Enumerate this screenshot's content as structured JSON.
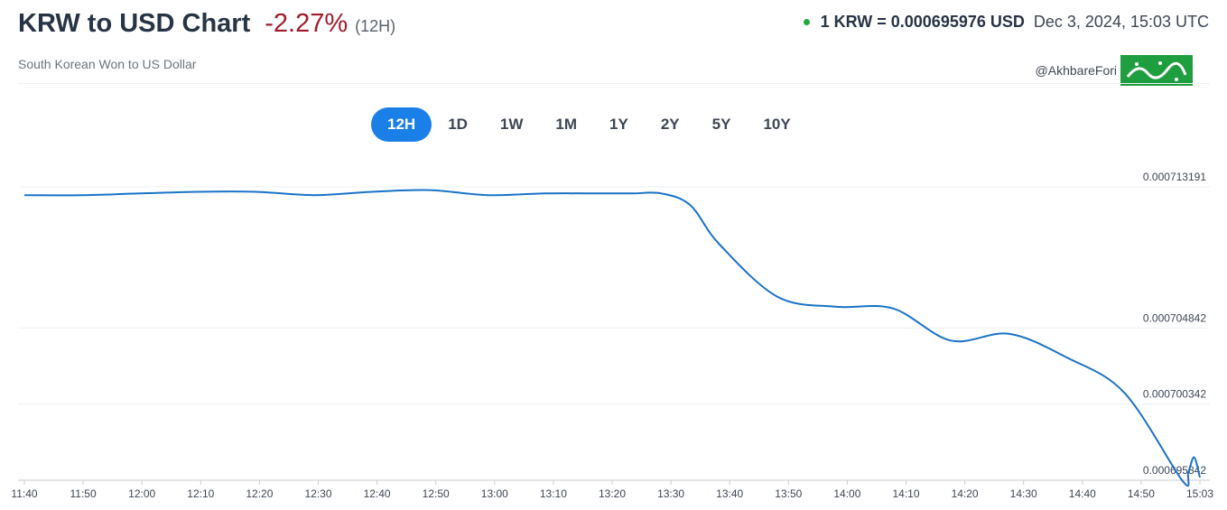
{
  "header": {
    "title": "KRW to USD Chart",
    "change": "-2.27%",
    "period": "(12H)",
    "subtitle": "South Korean Won to US Dollar",
    "rate": "1 KRW = 0.000695976 USD",
    "timestamp": "Dec 3, 2024, 15:03 UTC",
    "watermark_handle": "@AkhbareFori",
    "live_color": "#1fae3c",
    "change_color": "#a01c2b"
  },
  "tabs": [
    {
      "label": "12H",
      "active": true
    },
    {
      "label": "1D",
      "active": false
    },
    {
      "label": "1W",
      "active": false
    },
    {
      "label": "1M",
      "active": false
    },
    {
      "label": "1Y",
      "active": false
    },
    {
      "label": "2Y",
      "active": false
    },
    {
      "label": "5Y",
      "active": false
    },
    {
      "label": "10Y",
      "active": false
    }
  ],
  "chart_data": {
    "type": "line",
    "title": "",
    "xlabel": "",
    "ylabel": "",
    "line_color": "#1a72c7",
    "grid": true,
    "x_tick_labels": [
      "11:40",
      "11:50",
      "12:00",
      "12:10",
      "12:20",
      "12:30",
      "12:40",
      "12:50",
      "13:00",
      "13:10",
      "13:20",
      "13:30",
      "13:40",
      "13:50",
      "14:00",
      "14:10",
      "14:20",
      "14:30",
      "14:40",
      "14:50",
      "15:03"
    ],
    "y_tick_labels": [
      "0.000713191",
      "0.000704842",
      "0.000700342",
      "0.000695842"
    ],
    "y_ticks": [
      0.000713191,
      0.000704842,
      0.000700342,
      0.000695842
    ],
    "ylim": [
      0.000695842,
      0.000713191
    ],
    "series": [
      {
        "x": [
          "11:40",
          "11:50",
          "12:00",
          "12:10",
          "12:20",
          "12:30",
          "12:40",
          "12:50",
          "13:00",
          "13:10",
          "13:20",
          "13:25",
          "13:30",
          "13:35",
          "13:40",
          "13:50",
          "14:00",
          "14:10",
          "14:20",
          "14:30",
          "14:40",
          "14:50",
          "15:00",
          "15:01",
          "15:02",
          "15:03"
        ],
        "y": [
          0.0007127,
          0.0007127,
          0.0007128,
          0.0007129,
          0.0007129,
          0.0007127,
          0.0007129,
          0.000713,
          0.0007127,
          0.0007128,
          0.0007128,
          0.0007128,
          0.0007128,
          0.0007121,
          0.0007098,
          0.0007067,
          0.0007061,
          0.000706,
          0.0007041,
          0.0007045,
          0.0007031,
          0.000701,
          0.0006958,
          0.0006963,
          0.0006972,
          0.000696
        ]
      }
    ]
  }
}
